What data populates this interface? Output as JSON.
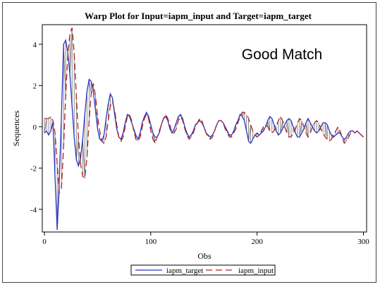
{
  "chart_data": {
    "type": "line",
    "title": "Warp Plot for Input=iapm_input and Target=iapm_target",
    "xlabel": "Obs",
    "ylabel": "Sequences",
    "xlim": [
      -2,
      303
    ],
    "ylim": [
      -5.1,
      4.95
    ],
    "xticks": [
      0,
      100,
      200,
      300
    ],
    "yticks": [
      -4,
      -2,
      0,
      2,
      4
    ],
    "annotation": "Good Match",
    "grid": false,
    "legend_position": "bottom",
    "series": [
      {
        "name": "iapm_target",
        "color": "#2b35c8",
        "dash": "solid",
        "x": [
          0,
          2,
          4,
          6,
          8,
          10,
          12,
          14,
          16,
          18,
          20,
          22,
          24,
          26,
          28,
          30,
          32,
          34,
          36,
          38,
          40,
          42,
          44,
          46,
          48,
          50,
          52,
          54,
          56,
          58,
          60,
          62,
          64,
          66,
          68,
          70,
          72,
          74,
          76,
          78,
          80,
          82,
          84,
          86,
          88,
          90,
          92,
          94,
          96,
          98,
          100,
          102,
          104,
          106,
          108,
          110,
          112,
          114,
          116,
          118,
          120,
          122,
          124,
          126,
          128,
          130,
          132,
          134,
          136,
          138,
          140,
          142,
          144,
          146,
          148,
          150,
          152,
          154,
          156,
          158,
          160,
          162,
          164,
          166,
          168,
          170,
          172,
          174,
          176,
          178,
          180,
          182,
          184,
          186,
          188,
          190,
          192,
          194,
          196,
          198,
          200,
          202,
          204,
          206,
          208,
          210,
          212,
          214,
          216,
          218,
          220,
          222,
          224,
          226,
          228,
          230,
          232,
          234,
          236,
          238,
          240,
          242,
          244,
          246,
          248,
          250,
          252,
          254,
          256,
          258,
          260,
          262,
          264,
          266,
          268,
          270,
          272,
          274,
          276,
          278,
          280,
          282,
          284,
          286,
          288,
          290,
          292,
          294,
          296,
          298,
          300
        ],
        "values": [
          -0.3,
          -0.2,
          -0.4,
          -0.2,
          0.2,
          -2.5,
          -5.0,
          -2.5,
          0.5,
          4.0,
          4.2,
          3.6,
          2.5,
          1.0,
          -0.5,
          -1.6,
          -1.9,
          -1.5,
          -0.6,
          0.6,
          1.7,
          2.3,
          2.2,
          1.7,
          0.8,
          -0.1,
          -0.6,
          -0.7,
          -0.4,
          0.4,
          1.1,
          1.6,
          1.4,
          0.6,
          -0.1,
          -0.5,
          -0.6,
          -0.3,
          0.2,
          0.6,
          0.5,
          0.2,
          -0.1,
          -0.4,
          -0.6,
          -0.3,
          0.2,
          0.5,
          0.7,
          0.5,
          0.1,
          -0.3,
          -0.5,
          -0.5,
          -0.3,
          0.1,
          0.4,
          0.5,
          0.3,
          -0.1,
          -0.3,
          -0.1,
          0.2,
          0.5,
          0.6,
          0.4,
          0.0,
          -0.3,
          -0.5,
          -0.4,
          -0.2,
          0.1,
          0.2,
          0.3,
          0.2,
          0.0,
          -0.3,
          -0.4,
          -0.5,
          -0.4,
          -0.2,
          0.1,
          0.3,
          0.3,
          0.2,
          0.0,
          -0.2,
          -0.4,
          -0.4,
          -0.2,
          0.1,
          0.3,
          0.6,
          0.5,
          0.3,
          -0.2,
          -0.7,
          -0.8,
          -0.6,
          -0.4,
          -0.3,
          -0.4,
          -0.3,
          -0.2,
          0.0,
          0.3,
          0.5,
          0.4,
          0.1,
          -0.2,
          -0.4,
          -0.3,
          -0.1,
          0.1,
          0.3,
          0.4,
          0.3,
          0.0,
          -0.3,
          -0.5,
          -0.5,
          -0.3,
          -0.1,
          0.2,
          0.4,
          0.2,
          0.0,
          -0.2,
          -0.3,
          -0.2,
          0.0,
          0.2,
          0.2,
          0.1,
          -0.2,
          -0.4,
          -0.5,
          -0.4,
          -0.3,
          -0.3,
          -0.5,
          -0.6,
          -0.5,
          -0.3,
          -0.2,
          -0.2,
          -0.3,
          -0.2,
          -0.3,
          -0.4,
          -0.5
        ]
      },
      {
        "name": "iapm_input",
        "color": "#b22222",
        "dash": "dashed",
        "x": [
          0,
          2,
          4,
          6,
          8,
          10,
          12,
          14,
          16,
          18,
          20,
          22,
          24,
          26,
          28,
          30,
          32,
          34,
          36,
          38,
          40,
          42,
          44,
          46,
          48,
          50,
          52,
          54,
          56,
          58,
          60,
          62,
          64,
          66,
          68,
          70,
          72,
          74,
          76,
          78,
          80,
          82,
          84,
          86,
          88,
          90,
          92,
          94,
          96,
          98,
          100,
          102,
          104,
          106,
          108,
          110,
          112,
          114,
          116,
          118,
          120,
          122,
          124,
          126,
          128,
          130,
          132,
          134,
          136,
          138,
          140,
          142,
          144,
          146,
          148,
          150,
          152,
          154,
          156,
          158,
          160,
          162,
          164,
          166,
          168,
          170,
          172,
          174,
          176,
          178,
          180,
          182,
          184,
          186,
          188,
          190,
          192,
          194,
          196,
          198,
          200,
          202,
          204,
          206,
          208,
          210,
          212,
          214,
          216,
          218,
          220,
          222,
          224,
          226,
          228,
          230,
          232,
          234,
          236,
          238,
          240,
          242,
          244,
          246,
          248,
          250,
          252,
          254,
          256,
          258,
          260,
          262,
          264,
          266,
          268,
          270,
          272,
          274,
          276,
          278,
          280,
          282,
          284,
          286,
          288,
          290,
          292,
          294,
          296,
          298,
          300
        ],
        "values": [
          0.4,
          0.4,
          0.4,
          0.5,
          0.3,
          -0.3,
          -1.8,
          -3.2,
          -3.0,
          -1.0,
          1.5,
          3.5,
          4.5,
          4.8,
          3.6,
          1.5,
          -0.5,
          -1.8,
          -2.4,
          -2.5,
          -1.5,
          0.3,
          1.6,
          2.1,
          1.5,
          0.5,
          -0.2,
          -0.7,
          -0.8,
          -0.5,
          0.3,
          1.0,
          1.2,
          0.8,
          0.1,
          -0.5,
          -0.7,
          -0.5,
          0.0,
          0.5,
          0.6,
          0.3,
          -0.2,
          -0.6,
          -0.7,
          -0.5,
          0.0,
          0.4,
          0.6,
          0.4,
          -0.2,
          -0.6,
          -0.8,
          -0.5,
          -0.2,
          0.1,
          0.4,
          0.6,
          0.4,
          0.1,
          -0.3,
          -0.3,
          -0.1,
          0.3,
          0.5,
          0.3,
          -0.1,
          -0.4,
          -0.6,
          -0.5,
          -0.3,
          0.0,
          0.2,
          0.4,
          0.3,
          0.0,
          -0.3,
          -0.5,
          -0.6,
          -0.5,
          -0.2,
          0.1,
          0.3,
          0.3,
          0.2,
          -0.1,
          -0.3,
          -0.5,
          -0.5,
          -0.3,
          -0.1,
          0.2,
          0.5,
          0.7,
          0.7,
          0.6,
          0.4,
          0.1,
          -0.2,
          -0.4,
          -0.5,
          -0.4,
          -0.2,
          0.0,
          0.1,
          0.0,
          -0.2,
          -0.3,
          -0.2,
          0.0,
          0.3,
          0.5,
          0.3,
          0.0,
          -0.3,
          -0.5,
          -0.5,
          -0.3,
          -0.1,
          0.2,
          0.4,
          0.3,
          0.0,
          -0.3,
          -0.5,
          -0.3,
          0.0,
          0.2,
          0.3,
          0.2,
          -0.1,
          -0.3,
          -0.5,
          -0.6,
          -0.7,
          -0.6,
          -0.4,
          -0.2,
          0.0,
          -0.2,
          -0.5,
          -0.8,
          -0.7,
          -0.5,
          -0.3,
          -0.2,
          -0.3,
          -0.2,
          -0.3,
          -0.4,
          -0.5
        ]
      }
    ],
    "warp_line_color": "#6e6e6e"
  }
}
